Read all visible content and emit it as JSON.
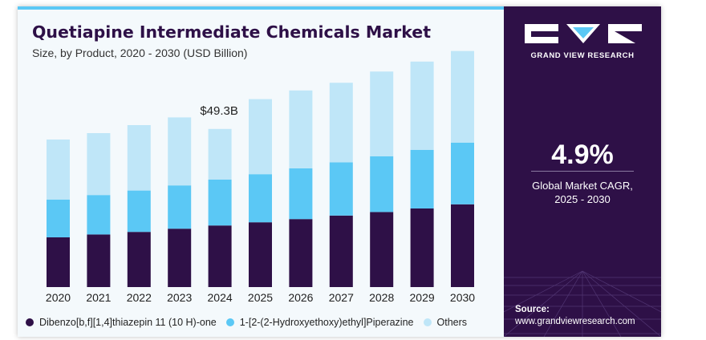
{
  "header": {
    "title": "Quetiapine Intermediate Chemicals Market",
    "subtitle": "Size, by Product, 2020 - 2030 (USD Billion)"
  },
  "brand": {
    "name": "GRAND VIEW RESEARCH"
  },
  "cagr": {
    "value": "4.9%",
    "label_line1": "Global Market CAGR,",
    "label_line2": "2025 - 2030"
  },
  "source": {
    "label": "Source:",
    "url": "www.grandviewresearch.com"
  },
  "colors": {
    "dark": "#2e1047",
    "mid": "#5bc8f5",
    "light": "#bfe6f8",
    "panel": "#2e1047"
  },
  "chart_data": {
    "type": "bar",
    "stacked": true,
    "title": "Quetiapine Intermediate Chemicals Market",
    "subtitle": "Size, by Product, 2020 - 2030 (USD Billion)",
    "categories": [
      "2020",
      "2021",
      "2022",
      "2023",
      "2024",
      "2025",
      "2026",
      "2027",
      "2028",
      "2029",
      "2030"
    ],
    "series": [
      {
        "name": "Dibenzo[b,f][1,4]thiazepin 11 (10 H)-one",
        "color": "#2e1047",
        "values": [
          15.5,
          16.4,
          17.2,
          18.2,
          19.2,
          20.2,
          21.2,
          22.3,
          23.4,
          24.5,
          25.8
        ]
      },
      {
        "name": "1-[2-(2-Hydroxyethoxy)ethyl]Piperazine",
        "color": "#5bc8f5",
        "values": [
          11.8,
          12.3,
          12.9,
          13.5,
          14.3,
          15.0,
          15.8,
          16.6,
          17.4,
          18.3,
          19.2
        ]
      },
      {
        "name": "Others",
        "color": "#bfe6f8",
        "values": [
          18.7,
          19.3,
          20.4,
          21.2,
          15.8,
          23.4,
          24.3,
          24.8,
          26.4,
          27.5,
          28.6
        ]
      }
    ],
    "annotations": [
      {
        "category": "2024",
        "text": "$49.3B"
      }
    ],
    "ylim": [
      0,
      75
    ],
    "xlabel": "",
    "ylabel": "",
    "grid": false,
    "legend_position": "bottom"
  }
}
